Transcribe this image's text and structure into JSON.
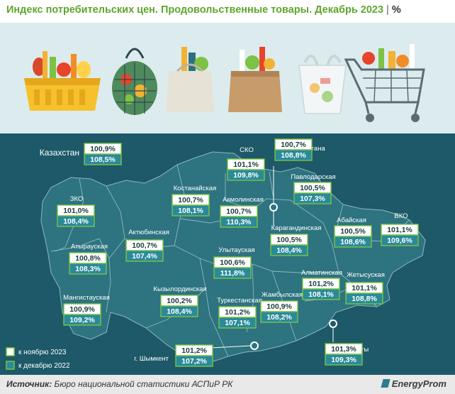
{
  "header": {
    "title": "Индекс потребительских цен. Продовольственные товары. Декабрь 2023",
    "separator": "|",
    "unit": "%"
  },
  "colors": {
    "title_green": "#5fa52c",
    "map_background": "#1d5968",
    "region_fill": "#2d7380",
    "illustration_background": "#dcecee",
    "nov_box": "#ffffff",
    "dec_box": "#2a8a9a",
    "accent_green": "#7cc243"
  },
  "illustrations": [
    "basket-icon",
    "string-bag-icon",
    "grocery-bag-icon",
    "paper-bag-icon",
    "plastic-bag-icon",
    "shopping-cart-icon"
  ],
  "national": {
    "label": "Казахстан",
    "nov": "100,9%",
    "dec": "108,5%"
  },
  "regions": [
    {
      "label": "СКО",
      "nov": "101,1%",
      "dec": "109,8%"
    },
    {
      "label": "г. Астана",
      "nov": "100,7%",
      "dec": "108,8%"
    },
    {
      "label": "Павлодарская",
      "nov": "100,5%",
      "dec": "107,3%"
    },
    {
      "label": "Костанайская",
      "nov": "100,7%",
      "dec": "108,1%"
    },
    {
      "label": "Акмолинская",
      "nov": "100,7%",
      "dec": "110,3%"
    },
    {
      "label": "ЗКО",
      "nov": "101,0%",
      "dec": "108,4%"
    },
    {
      "label": "ВКО",
      "nov": "101,1%",
      "dec": "109,6%"
    },
    {
      "label": "Абайская",
      "nov": "100,5%",
      "dec": "108,6%"
    },
    {
      "label": "Карагандинская",
      "nov": "100,5%",
      "dec": "108,4%"
    },
    {
      "label": "Актюбинская",
      "nov": "100,7%",
      "dec": "107,4%"
    },
    {
      "label": "Атырауская",
      "nov": "100,8%",
      "dec": "108,3%"
    },
    {
      "label": "Улытауская",
      "nov": "100,6%",
      "dec": "111,8%"
    },
    {
      "label": "Алматинская",
      "nov": "101,2%",
      "dec": "108,1%"
    },
    {
      "label": "Жетысуская",
      "nov": "101,1%",
      "dec": "108,8%"
    },
    {
      "label": "Мангистауская",
      "nov": "100,9%",
      "dec": "109,2%"
    },
    {
      "label": "Кызылординская",
      "nov": "100,2%",
      "dec": "108,4%"
    },
    {
      "label": "Туркестанская",
      "nov": "101,2%",
      "dec": "107,1%"
    },
    {
      "label": "Жамбылская",
      "nov": "100,9%",
      "dec": "108,2%"
    },
    {
      "label": "г. Шымкент",
      "nov": "101,2%",
      "dec": "107,2%"
    },
    {
      "label": "г. Алматы",
      "nov": "101,3%",
      "dec": "109,3%"
    }
  ],
  "legend": [
    {
      "key": "nov",
      "label": "к ноябрю 2023"
    },
    {
      "key": "dec",
      "label": "к декабрю 2022"
    }
  ],
  "footer": {
    "source_prefix": "Источник:",
    "source_text": "Бюро национальной статистики АСПиР РК",
    "brand": "EnergyProm"
  }
}
